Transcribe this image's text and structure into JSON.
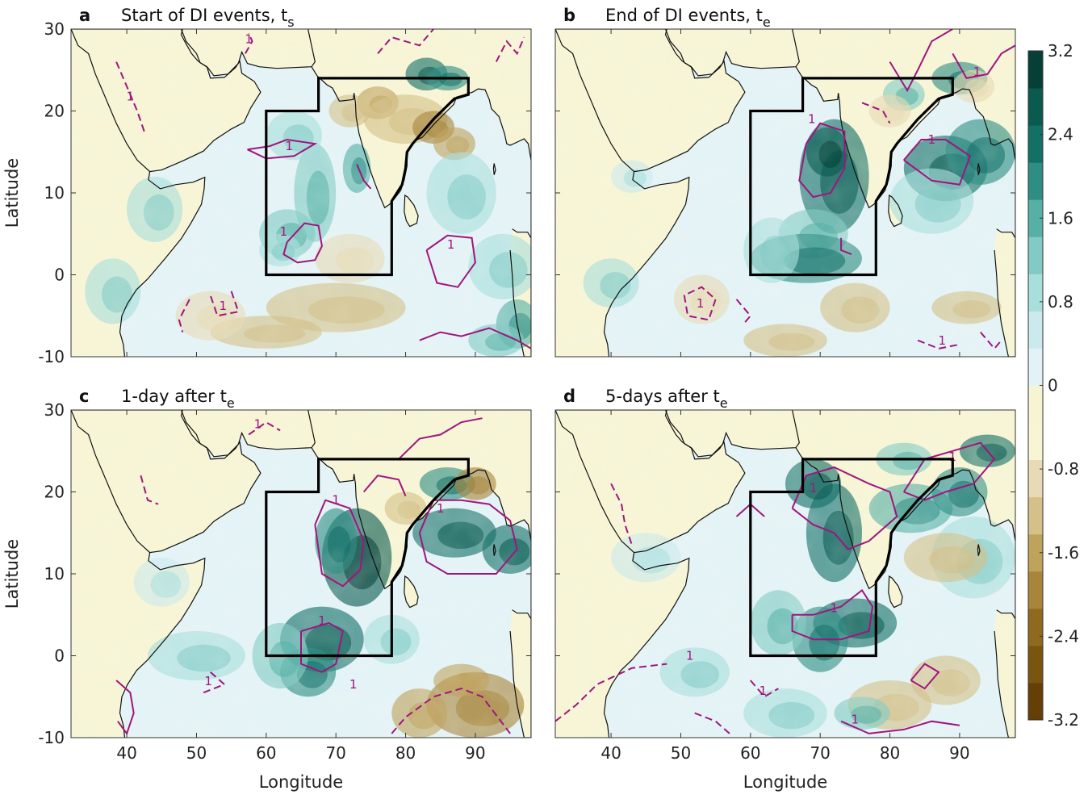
{
  "figure": {
    "panels": [
      {
        "letter": "a",
        "title": "Start of DI events, t",
        "subscript": "s",
        "show_y": true,
        "show_x": false
      },
      {
        "letter": "b",
        "title": "End of DI events, t",
        "subscript": "e",
        "show_y": false,
        "show_x": false
      },
      {
        "letter": "c",
        "title": "1-day after t",
        "subscript": "e",
        "show_y": true,
        "show_x": true
      },
      {
        "letter": "d",
        "title": "5-days after t",
        "subscript": "e",
        "show_y": false,
        "show_x": true
      }
    ],
    "x_axis": {
      "label": "Longitude",
      "range": [
        32,
        98
      ],
      "ticks": [
        40,
        50,
        60,
        70,
        80,
        90
      ],
      "tick_labels": [
        "40",
        "50",
        "60",
        "70",
        "80",
        "90"
      ]
    },
    "y_axis": {
      "label": "Latitude",
      "range": [
        -10,
        30
      ],
      "ticks": [
        30,
        20,
        10,
        0,
        -10
      ],
      "tick_labels": [
        "30",
        "20",
        "10",
        "0",
        "-10"
      ]
    },
    "colorbar": {
      "range": [
        -3.2,
        3.2
      ],
      "ticks": [
        3.2,
        2.4,
        1.6,
        0.8,
        0,
        -0.8,
        -1.6,
        -2.4,
        -3.2
      ],
      "tick_labels": [
        "3.2",
        "2.4",
        "1.6",
        "0.8",
        "0",
        "-0.8",
        "-1.6",
        "-2.4",
        "-3.2"
      ],
      "colors": [
        "#663f07",
        "#7a5510",
        "#8f6a1e",
        "#a8853a",
        "#bfa25c",
        "#d4c088",
        "#e7dab4",
        "#f7f5d4",
        "#f6f4d2",
        "#e2f2f6",
        "#cbeaee",
        "#a8dedc",
        "#82cbc4",
        "#56b0a6",
        "#2e8e85",
        "#137067",
        "#0a5a50",
        "#063f36"
      ]
    },
    "domain_box": [
      [
        60,
        0
      ],
      [
        60,
        20
      ],
      [
        67.5,
        20
      ],
      [
        67.5,
        24
      ],
      [
        89,
        24
      ],
      [
        89,
        22
      ],
      [
        87,
        21.5
      ],
      [
        84,
        19
      ],
      [
        81,
        16
      ],
      [
        80.2,
        15
      ],
      [
        80,
        13
      ],
      [
        79.5,
        11
      ],
      [
        78,
        9
      ],
      [
        78,
        0
      ],
      [
        60,
        0
      ]
    ],
    "contour_label": "1"
  }
}
